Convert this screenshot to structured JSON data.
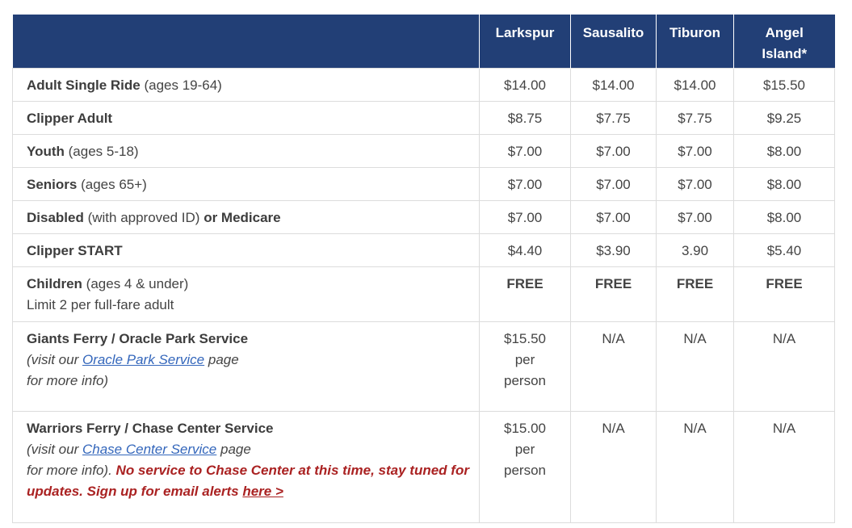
{
  "header": {
    "col0": "",
    "col1": "Larkspur",
    "col2": "Sausalito",
    "col3": "Tiburon",
    "col4_line1": "Angel",
    "col4_line2": "Island*"
  },
  "rows": [
    {
      "bold": "Adult Single Ride",
      "rest": " (ages 19-64)",
      "v": [
        "$14.00",
        "$14.00",
        "$14.00",
        "$15.50"
      ]
    },
    {
      "bold": "Clipper Adult",
      "rest": "",
      "v": [
        "$8.75",
        "$7.75",
        "$7.75",
        "$9.25"
      ]
    },
    {
      "bold": "Youth",
      "rest": " (ages 5-18)",
      "v": [
        "$7.00",
        "$7.00",
        "$7.00",
        "$8.00"
      ]
    },
    {
      "bold": "Seniors",
      "rest": " (ages 65+)",
      "v": [
        "$7.00",
        "$7.00",
        "$7.00",
        "$8.00"
      ]
    },
    {
      "bold": "Disabled",
      "rest": " (with approved ID) ",
      "bold2": "or Medicare",
      "v": [
        "$7.00",
        "$7.00",
        "$7.00",
        "$8.00"
      ]
    },
    {
      "bold": "Clipper START",
      "rest": "",
      "v": [
        "$4.40",
        "$3.90",
        "3.90",
        "$5.40"
      ]
    },
    {
      "bold": "Children",
      "rest": " (ages 4 & under)",
      "line2": "Limit 2 per full-fare adult",
      "v": [
        "FREE",
        "FREE",
        "FREE",
        "FREE"
      ]
    },
    {
      "bold": "Giants Ferry / Oracle Park Service",
      "pre": "(visit our ",
      "link": "Oracle Park Service",
      "post": " page",
      "line3": "for more info)",
      "v1_l1": "$15.50",
      "v1_l2": "per",
      "v1_l3": "person",
      "v": [
        "N/A",
        "N/A",
        "N/A"
      ]
    },
    {
      "bold": "Warriors Ferry / Chase Center Service",
      "pre": "(visit our ",
      "link": "Chase Center Service",
      "post": " page",
      "line3": "for more info). ",
      "alert": "No service to Chase Center at this time, stay tuned for updates. Sign up for email alerts ",
      "alert_link": "here >",
      "v1_l1": "$15.00",
      "v1_l2": "per",
      "v1_l3": "person",
      "v": [
        "N/A",
        "N/A",
        "N/A"
      ]
    }
  ]
}
